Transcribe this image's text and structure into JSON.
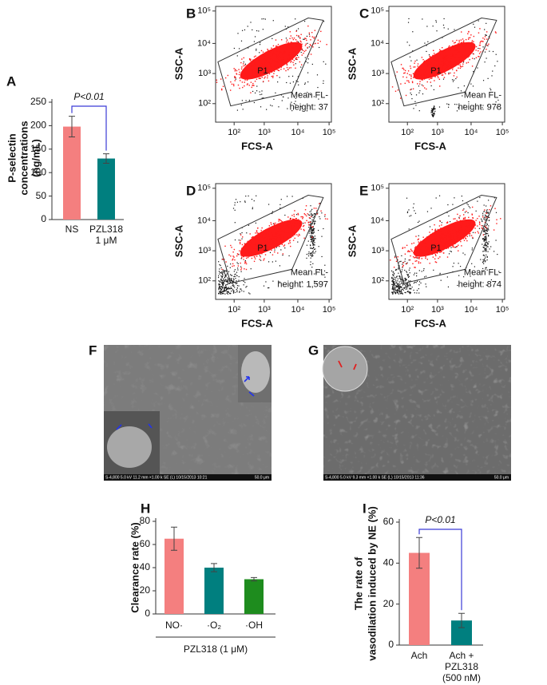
{
  "chart_data": [
    {
      "panel": "A",
      "type": "bar",
      "ylabel": [
        "P-selectin",
        "concentrations",
        "(ng/mL)"
      ],
      "categories": [
        [
          "NS"
        ],
        [
          "PZL318",
          "1 μM"
        ]
      ],
      "values": [
        198,
        130
      ],
      "errors": [
        22,
        10
      ],
      "colors": [
        "#f47f7f",
        "#007f7f"
      ],
      "ylim": [
        0,
        250
      ],
      "yticks": [
        0,
        50,
        100,
        150,
        200,
        250
      ],
      "annotation": "P<0.01"
    },
    {
      "panel": "H",
      "type": "bar",
      "ylabel": [
        "Clearance rate (%)"
      ],
      "categories": [
        [
          "NO·"
        ],
        [
          "·O₂"
        ],
        [
          "·OH"
        ]
      ],
      "values": [
        65,
        40,
        30
      ],
      "errors": [
        10,
        3.5,
        1.5
      ],
      "colors": [
        "#f47f7f",
        "#007f7f",
        "#1e8c1e"
      ],
      "ylim": [
        0,
        80
      ],
      "yticks": [
        0,
        20,
        40,
        60,
        80
      ],
      "group_label": "PZL318 (1 μM)"
    },
    {
      "panel": "I",
      "type": "bar",
      "ylabel": [
        "The rate of",
        "vasodilation induced by NE (%)"
      ],
      "categories": [
        [
          "Ach"
        ],
        [
          "Ach +",
          "PZL318",
          "(500 nM)"
        ]
      ],
      "values": [
        45,
        12
      ],
      "errors": [
        7.5,
        3.5
      ],
      "colors": [
        "#f47f7f",
        "#007f7f"
      ],
      "ylim": [
        0,
        60
      ],
      "yticks": [
        0,
        20,
        40,
        60
      ],
      "annotation": "P<0.01"
    }
  ],
  "flow_panels": [
    {
      "panel": "B",
      "ylabel": "SSC-A",
      "xlabel": "FCS-A",
      "gate": "P1",
      "mean_label": [
        "Mean FL-",
        "height: 37"
      ],
      "xticks": [
        "10²",
        "10³",
        "10⁴",
        "10⁵"
      ],
      "yticks": [
        "10⁵",
        "10⁴",
        "10³",
        "10²"
      ]
    },
    {
      "panel": "C",
      "ylabel": "SSC-A",
      "xlabel": "FCS-A",
      "gate": "P1",
      "mean_label": [
        "Mean FL-",
        "height: 978"
      ],
      "xticks": [
        "10²",
        "10³",
        "10⁴",
        "10⁵"
      ],
      "yticks": [
        "10⁵",
        "10⁴",
        "10³",
        "10²"
      ]
    },
    {
      "panel": "D",
      "ylabel": "SSC-A",
      "xlabel": "FCS-A",
      "gate": "P1",
      "mean_label": [
        "Mean FL-",
        "height: 1,597"
      ],
      "xticks": [
        "10²",
        "10³",
        "10⁴",
        "10⁵"
      ],
      "yticks": [
        "10⁵",
        "10⁴",
        "10³",
        "10²"
      ]
    },
    {
      "panel": "E",
      "ylabel": "SSC-A",
      "xlabel": "FCS-A",
      "gate": "P1",
      "mean_label": [
        "Mean FL-",
        "height: 874"
      ],
      "xticks": [
        "10²",
        "10³",
        "10⁴",
        "10⁵"
      ],
      "yticks": [
        "10⁵",
        "10⁴",
        "10³",
        "10²"
      ]
    }
  ],
  "sem_panels": [
    {
      "panel": "F",
      "caption": "S-4,800 5.0 kV 11.2 mm ×1.00 k SE (L) 10/15/2013 10:21",
      "scale": "50.0 μm"
    },
    {
      "panel": "G",
      "caption": "S-4,800 5.0 kV 9.3 mm ×1.00 k SE (L) 10/15/2013 11:36",
      "scale": "50.0 μm"
    }
  ]
}
